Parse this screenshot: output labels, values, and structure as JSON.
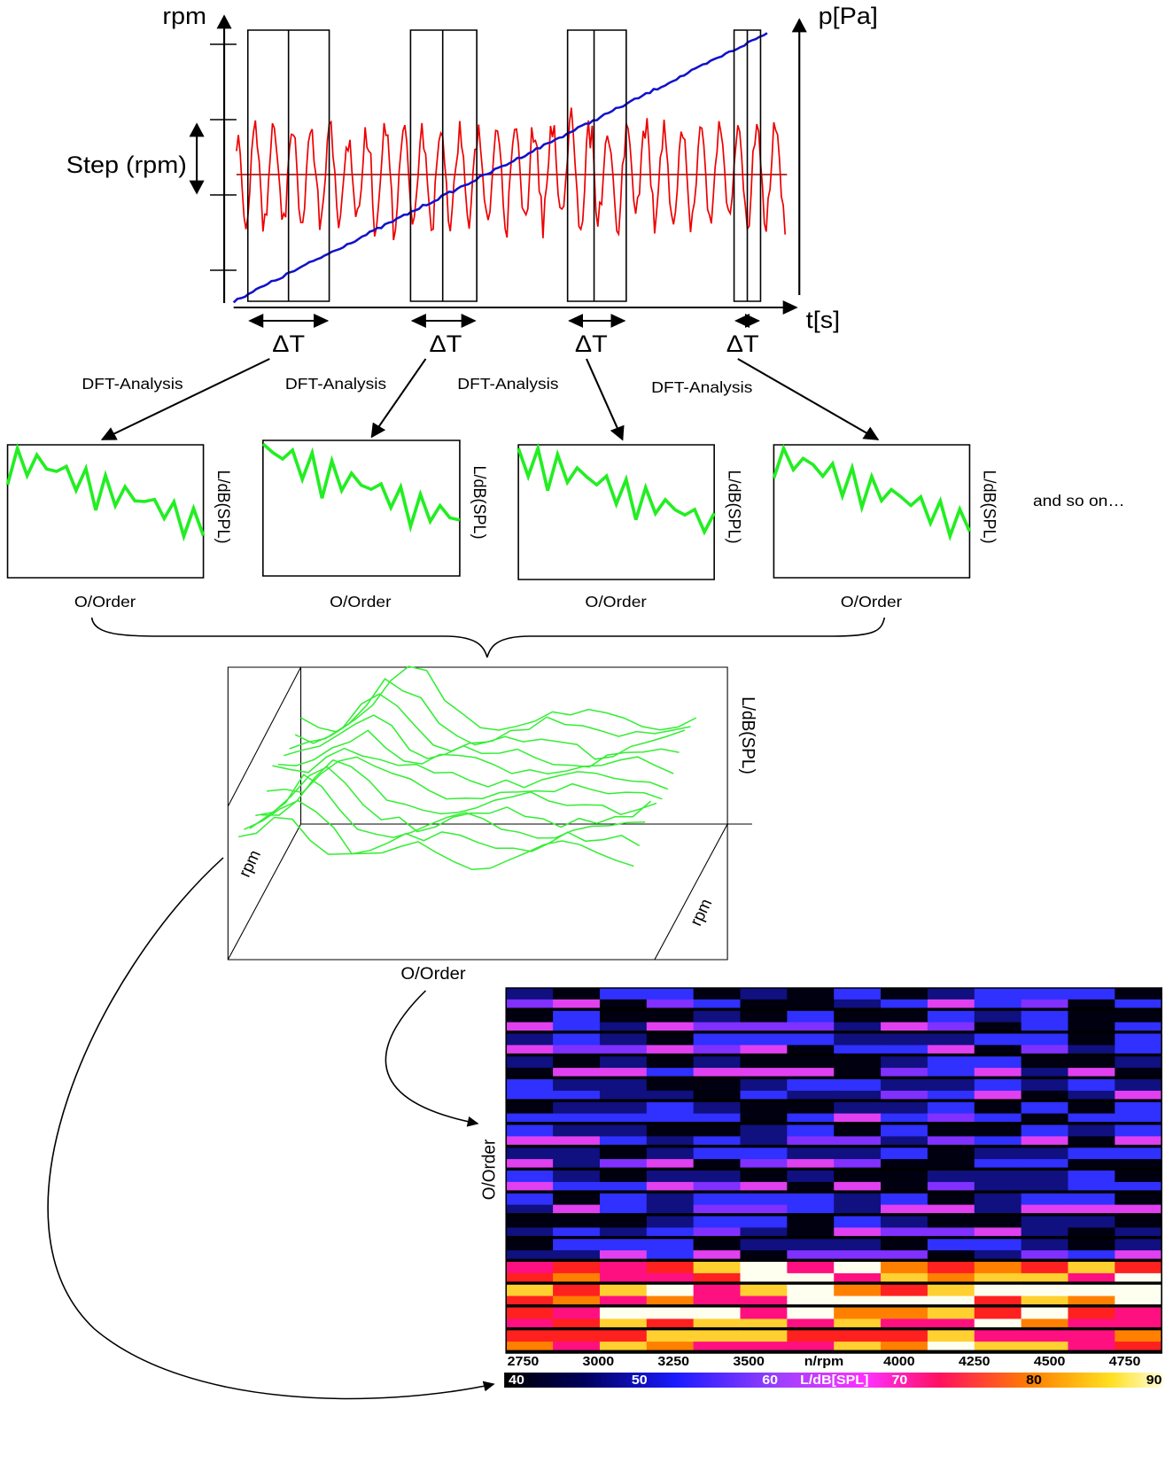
{
  "top_chart": {
    "y_left_label": "rpm",
    "y_right_label": "p[Pa]",
    "x_label": "t[s]",
    "step_label": "Step (rpm)",
    "window_labels": [
      "ΔT",
      "ΔT",
      "ΔT",
      "ΔT"
    ]
  },
  "dft_labels": [
    "DFT-Analysis",
    "DFT-Analysis",
    "DFT-Analysis",
    "DFT-Analysis"
  ],
  "spectra": [
    {
      "y_label": "L/dB(SPL)",
      "x_label": "O/Order"
    },
    {
      "y_label": "L/dB(SPL)",
      "x_label": "O/Order"
    },
    {
      "y_label": "L/dB(SPL)",
      "x_label": "O/Order"
    },
    {
      "y_label": "L/dB(SPL)",
      "x_label": "O/Order"
    }
  ],
  "and_so_on": "and so on…",
  "waterfall": {
    "z_label": "L/dB(SPL)",
    "x_label": "O/Order",
    "rpm_left": "rpm",
    "rpm_right": "rpm"
  },
  "colormap": {
    "y_label": "O/Order",
    "x_ticks": [
      "2750",
      "3000",
      "3250",
      "3500",
      "n/rpm",
      "4000",
      "4250",
      "4500",
      "4750"
    ],
    "colorbar_ticks": [
      "40",
      "50",
      "60",
      "L/dB[SPL]",
      "70",
      "80",
      "90"
    ]
  }
}
